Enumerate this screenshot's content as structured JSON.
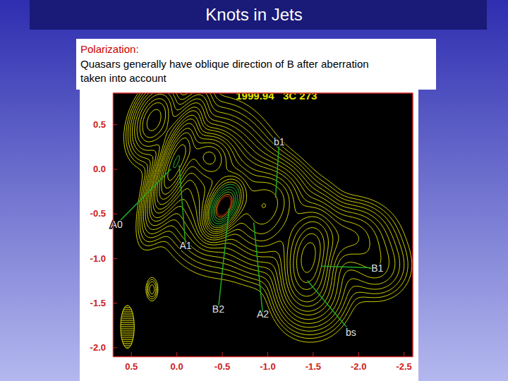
{
  "slide": {
    "title": "Knots in Jets",
    "note_heading": "Polarization:",
    "note_lines": [
      "Quasars generally have oblique direction of B after aberration",
      "taken into account"
    ]
  },
  "chart_data": {
    "type": "contour",
    "title": "1999.94   3C 273",
    "xlim": [
      0.7,
      -2.6
    ],
    "ylim": [
      0.85,
      -2.1
    ],
    "xticks": [
      0.5,
      {
        "value": 0,
        "label": "0.0"
      },
      -0.5,
      {
        "value": -1,
        "label": "-1.0"
      },
      -1.5,
      {
        "value": -2,
        "label": "-2.0"
      },
      -2.5
    ],
    "yticks": [
      0.5,
      {
        "value": 0,
        "label": "0.0"
      },
      -0.5,
      {
        "value": -1,
        "label": "-1.0"
      },
      -1.5,
      {
        "value": -2,
        "label": "-2.0"
      }
    ],
    "components": [
      {
        "x": 0.02,
        "y": 0.05,
        "peak": 0.45,
        "sx": 0.09,
        "sy": 0.35,
        "pa": -20
      },
      {
        "x": 0.25,
        "y": 0.55,
        "peak": 0.15,
        "sx": 0.12,
        "sy": 0.22,
        "pa": -20
      },
      {
        "x": -0.52,
        "y": -0.42,
        "peak": 1.0,
        "sx": 0.09,
        "sy": 0.17,
        "pa": -25
      },
      {
        "x": -0.45,
        "y": -0.2,
        "peak": 0.2,
        "sx": 0.3,
        "sy": 0.4,
        "pa": 0
      },
      {
        "x": -0.35,
        "y": 0.15,
        "peak": 0.25,
        "sx": 0.15,
        "sy": 0.15,
        "pa": 0
      },
      {
        "x": -1.1,
        "y": -0.3,
        "peak": 0.12,
        "sx": 0.2,
        "sy": 0.2,
        "pa": 0
      },
      {
        "x": -0.95,
        "y": -0.55,
        "peak": 0.2,
        "sx": 0.2,
        "sy": 0.3,
        "pa": 0
      },
      {
        "x": -1.45,
        "y": -0.95,
        "peak": 0.35,
        "sx": 0.15,
        "sy": 0.3,
        "pa": -10
      },
      {
        "x": -1.5,
        "y": -1.35,
        "peak": 0.12,
        "sx": 0.2,
        "sy": 0.25,
        "pa": 0
      },
      {
        "x": -1.9,
        "y": -0.75,
        "peak": 0.1,
        "sx": 0.25,
        "sy": 0.2,
        "pa": 0
      },
      {
        "x": -2.2,
        "y": -1.1,
        "peak": 0.05,
        "sx": 0.2,
        "sy": 0.2,
        "pa": 0
      },
      {
        "x": 0.27,
        "y": -1.35,
        "peak": 0.03,
        "sx": 0.04,
        "sy": 0.08,
        "pa": 0
      }
    ],
    "levels": [
      0.008,
      0.012,
      0.017,
      0.024,
      0.033,
      0.045,
      0.06,
      0.08,
      0.1,
      0.13,
      0.16,
      0.2,
      0.25,
      0.3,
      0.36,
      0.43,
      0.5,
      0.6,
      0.7,
      0.8,
      0.9,
      0.97
    ],
    "colors": [
      "#e6e600",
      "#e6e600",
      "#e6e600",
      "#e6e600",
      "#e6e600",
      "#e6e600",
      "#e6e600",
      "#e6e600",
      "#e6e600",
      "#e6e600",
      "#e6e600",
      "#e6e600",
      "#e6e600",
      "#e6e600",
      "#e6e600",
      "#e6e600",
      "#33cc33",
      "#33cc33",
      "#33cc33",
      "#66dd33",
      "#ff9900",
      "#e03000"
    ],
    "beam": {
      "x": 0.54,
      "y": -1.77,
      "width": 0.15,
      "height": 0.48
    },
    "annotations": [
      {
        "text": "A0",
        "x": 0.66,
        "y": -0.62,
        "target_x": 0.06,
        "target_y": 0.0
      },
      {
        "text": "A1",
        "x": -0.1,
        "y": -0.86,
        "target_x": -0.03,
        "target_y": 0.04
      },
      {
        "text": "B2",
        "x": -0.46,
        "y": -1.57,
        "target_x": -0.58,
        "target_y": -0.44
      },
      {
        "text": "A2",
        "x": -0.95,
        "y": -1.63,
        "target_x": -0.85,
        "target_y": -0.6
      },
      {
        "text": "b1",
        "x": -1.13,
        "y": 0.3,
        "target_x": -1.09,
        "target_y": -0.32
      },
      {
        "text": "B1",
        "x": -2.21,
        "y": -1.11,
        "target_x": -1.59,
        "target_y": -1.09
      },
      {
        "text": "bs",
        "x": -1.92,
        "y": -1.83,
        "target_x": -1.44,
        "target_y": -1.25
      }
    ]
  }
}
